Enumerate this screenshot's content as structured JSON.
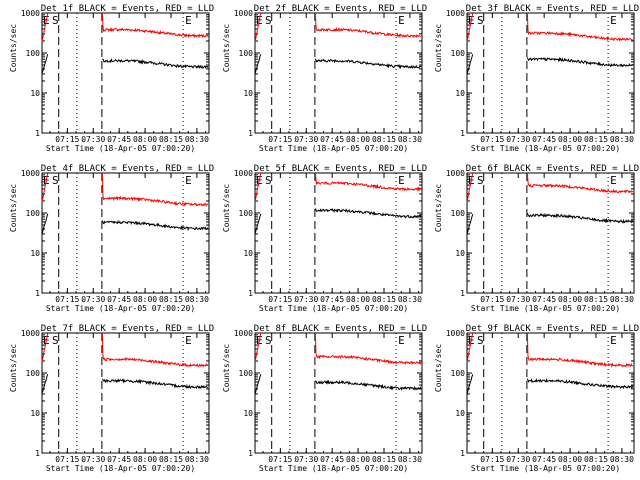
{
  "colors": {
    "events": "#000000",
    "lld": "#ff0000",
    "background": "#ffffff"
  },
  "chart_data": [
    {
      "type": "line",
      "title": "Det 1f BLACK = Events, RED = LLD",
      "xlabel": "Start Time (18-Apr-05 07:00:20)",
      "ylabel": "Counts/sec",
      "yscale": "log",
      "ylim": [
        1,
        1000
      ],
      "xlim": [
        "07:00:20",
        "08:37"
      ],
      "x_ticks": [
        "07:15",
        "07:30",
        "07:45",
        "08:00",
        "08:15",
        "08:30"
      ],
      "y_ticks": [
        "1",
        "10",
        "100",
        "1000"
      ],
      "annotations": [
        "E",
        "S",
        "E"
      ],
      "series": [
        {
          "color": "red",
          "level_after_gap": 330
        },
        {
          "color": "black",
          "level_after_gap": 55
        }
      ]
    },
    {
      "type": "line",
      "title": "Det 2f BLACK = Events, RED = LLD",
      "xlabel": "Start Time (18-Apr-05 07:00:20)",
      "ylabel": "Counts/sec",
      "yscale": "log",
      "ylim": [
        1,
        1000
      ],
      "xlim": [
        "07:00:20",
        "08:37"
      ],
      "x_ticks": [
        "07:15",
        "07:30",
        "07:45",
        "08:00",
        "08:15",
        "08:30"
      ],
      "y_ticks": [
        "1",
        "10",
        "100",
        "1000"
      ],
      "annotations": [
        "E",
        "S",
        "E"
      ],
      "series": [
        {
          "color": "red",
          "level_after_gap": 330
        },
        {
          "color": "black",
          "level_after_gap": 55
        }
      ]
    },
    {
      "type": "line",
      "title": "Det 3f BLACK = Events, RED = LLD",
      "xlabel": "Start Time (18-Apr-05 07:00:20)",
      "ylabel": "Counts/sec",
      "yscale": "log",
      "ylim": [
        1,
        1000
      ],
      "xlim": [
        "07:00:20",
        "08:37"
      ],
      "x_ticks": [
        "07:15",
        "07:30",
        "07:45",
        "08:00",
        "08:15",
        "08:30"
      ],
      "y_ticks": [
        "1",
        "10",
        "100",
        "1000"
      ],
      "annotations": [
        "E",
        "S",
        "E"
      ],
      "series": [
        {
          "color": "red",
          "level_after_gap": 270
        },
        {
          "color": "black",
          "level_after_gap": 60
        }
      ]
    },
    {
      "type": "line",
      "title": "Det 4f BLACK = Events, RED = LLD",
      "xlabel": "Start Time (18-Apr-05 07:00:20)",
      "ylabel": "Counts/sec",
      "yscale": "log",
      "ylim": [
        1,
        1000
      ],
      "xlim": [
        "07:00:20",
        "08:37"
      ],
      "x_ticks": [
        "07:15",
        "07:30",
        "07:45",
        "08:00",
        "08:15",
        "08:30"
      ],
      "y_ticks": [
        "1",
        "10",
        "100",
        "1000"
      ],
      "annotations": [
        "E",
        "S",
        "E"
      ],
      "series": [
        {
          "color": "red",
          "level_after_gap": 200
        },
        {
          "color": "black",
          "level_after_gap": 50
        }
      ]
    },
    {
      "type": "line",
      "title": "Det 5f BLACK = Events, RED = LLD",
      "xlabel": "Start Time (18-Apr-05 07:00:20)",
      "ylabel": "Counts/sec",
      "yscale": "log",
      "ylim": [
        1,
        1000
      ],
      "xlim": [
        "07:00:20",
        "08:37"
      ],
      "x_ticks": [
        "07:15",
        "07:30",
        "07:45",
        "08:00",
        "08:15",
        "08:30"
      ],
      "y_ticks": [
        "1",
        "10",
        "100",
        "1000"
      ],
      "annotations": [
        "E",
        "S",
        "E"
      ],
      "series": [
        {
          "color": "red",
          "level_after_gap": 480
        },
        {
          "color": "black",
          "level_after_gap": 100
        }
      ]
    },
    {
      "type": "line",
      "title": "Det 6f BLACK = Events, RED = LLD",
      "xlabel": "Start Time (18-Apr-05 07:00:20)",
      "ylabel": "Counts/sec",
      "yscale": "log",
      "ylim": [
        1,
        1000
      ],
      "xlim": [
        "07:00:20",
        "08:37"
      ],
      "x_ticks": [
        "07:15",
        "07:30",
        "07:45",
        "08:00",
        "08:15",
        "08:30"
      ],
      "y_ticks": [
        "1",
        "10",
        "100",
        "1000"
      ],
      "annotations": [
        "E",
        "S",
        "E"
      ],
      "series": [
        {
          "color": "red",
          "level_after_gap": 420
        },
        {
          "color": "black",
          "level_after_gap": 75
        }
      ]
    },
    {
      "type": "line",
      "title": "Det 7f BLACK = Events, RED = LLD",
      "xlabel": "Start Time (18-Apr-05 07:00:20)",
      "ylabel": "Counts/sec",
      "yscale": "log",
      "ylim": [
        1,
        1000
      ],
      "xlim": [
        "07:00:20",
        "08:37"
      ],
      "x_ticks": [
        "07:15",
        "07:30",
        "07:45",
        "08:00",
        "08:15",
        "08:30"
      ],
      "y_ticks": [
        "1",
        "10",
        "100",
        "1000"
      ],
      "annotations": [
        "E",
        "S",
        "E"
      ],
      "series": [
        {
          "color": "red",
          "level_after_gap": 190
        },
        {
          "color": "black",
          "level_after_gap": 55
        }
      ]
    },
    {
      "type": "line",
      "title": "Det 8f BLACK = Events, RED = LLD",
      "xlabel": "Start Time (18-Apr-05 07:00:20)",
      "ylabel": "Counts/sec",
      "yscale": "log",
      "ylim": [
        1,
        1000
      ],
      "xlim": [
        "07:00:20",
        "08:37"
      ],
      "x_ticks": [
        "07:15",
        "07:30",
        "07:45",
        "08:00",
        "08:15",
        "08:30"
      ],
      "y_ticks": [
        "1",
        "10",
        "100",
        "1000"
      ],
      "annotations": [
        "E",
        "S",
        "E"
      ],
      "series": [
        {
          "color": "red",
          "level_after_gap": 220
        },
        {
          "color": "black",
          "level_after_gap": 50
        }
      ]
    },
    {
      "type": "line",
      "title": "Det 9f BLACK = Events, RED = LLD",
      "xlabel": "Start Time (18-Apr-05 07:00:20)",
      "ylabel": "Counts/sec",
      "yscale": "log",
      "ylim": [
        1,
        1000
      ],
      "xlim": [
        "07:00:20",
        "08:37"
      ],
      "x_ticks": [
        "07:15",
        "07:30",
        "07:45",
        "08:00",
        "08:15",
        "08:30"
      ],
      "y_ticks": [
        "1",
        "10",
        "100",
        "1000"
      ],
      "annotations": [
        "E",
        "S",
        "E"
      ],
      "series": [
        {
          "color": "red",
          "level_after_gap": 190
        },
        {
          "color": "black",
          "level_after_gap": 55
        }
      ]
    }
  ]
}
